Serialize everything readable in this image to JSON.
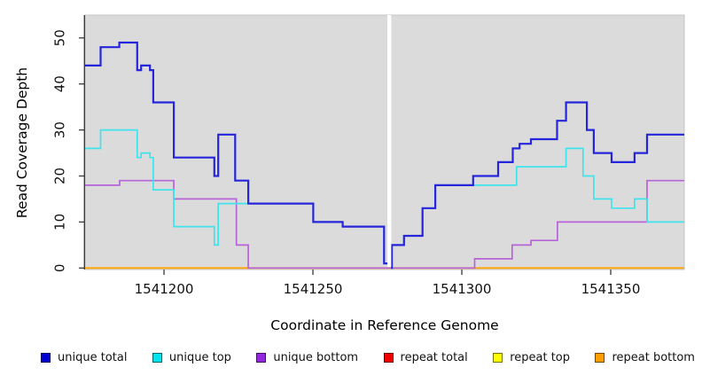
{
  "chart_data": {
    "type": "line",
    "subtype": "step-coverage",
    "title": "",
    "xlabel": "Coordinate in Reference Genome",
    "ylabel": "Read Coverage Depth",
    "xlim": [
      1541173.5,
      1541374.7
    ],
    "ylim": [
      0,
      54.6
    ],
    "x_ticks": [
      1541200,
      1541250,
      1541300,
      1541350
    ],
    "y_ticks": [
      0,
      10,
      20,
      30,
      40,
      50
    ],
    "grid": false,
    "legend_position": "bottom",
    "panel_bg": "#dbdbdb",
    "panel_border": "#c6c6c6",
    "axis_color": "#3a3a3a",
    "gap": {
      "x_start": 1541275.0,
      "x_end": 1541276.3,
      "color": "#ffffff"
    },
    "draw_order": [
      4,
      3,
      5,
      2,
      1,
      0
    ],
    "series": [
      {
        "name": "unique total",
        "color": "#2525db",
        "legend_color": "#0000d2",
        "width": 2.2,
        "blocks": [
          {
            "steps": [
              [
                1541173.5,
                44
              ],
              [
                1541178.7,
                48
              ],
              [
                1541185.0,
                49
              ],
              [
                1541191.0,
                43
              ],
              [
                1541192.3,
                44
              ],
              [
                1541195.3,
                43
              ],
              [
                1541196.4,
                36
              ],
              [
                1541203.3,
                24
              ],
              [
                1541216.9,
                20
              ],
              [
                1541218.2,
                29
              ],
              [
                1541223.9,
                19
              ],
              [
                1541228.3,
                14
              ],
              [
                1541250.1,
                10
              ],
              [
                1541260.0,
                9
              ],
              [
                1541273.9,
                1
              ]
            ],
            "end": 1541275.0
          },
          {
            "steps": [
              [
                1541276.3,
                0
              ],
              [
                1541276.5,
                5
              ],
              [
                1541280.6,
                7
              ],
              [
                1541286.8,
                13
              ],
              [
                1541291.1,
                18
              ],
              [
                1541303.8,
                20
              ],
              [
                1541312.2,
                23
              ],
              [
                1541317.1,
                26
              ],
              [
                1541319.4,
                27
              ],
              [
                1541323.2,
                28
              ],
              [
                1541332.0,
                32
              ],
              [
                1541335.0,
                36
              ],
              [
                1541342.0,
                30
              ],
              [
                1541344.3,
                25
              ],
              [
                1541350.3,
                23
              ],
              [
                1541358.0,
                25
              ],
              [
                1541362.2,
                29
              ]
            ],
            "end": 1541374.7
          }
        ]
      },
      {
        "name": "unique top",
        "color": "#3ee3ec",
        "legend_color": "#00e5ee",
        "width": 1.7,
        "blocks": [
          {
            "steps": [
              [
                1541173.5,
                26
              ],
              [
                1541178.7,
                30
              ],
              [
                1541191.0,
                24
              ],
              [
                1541192.3,
                25
              ],
              [
                1541195.3,
                24
              ],
              [
                1541196.4,
                17
              ],
              [
                1541203.3,
                9
              ],
              [
                1541216.9,
                5
              ],
              [
                1541218.2,
                14
              ],
              [
                1541250.1,
                10
              ],
              [
                1541260.0,
                9
              ],
              [
                1541273.9,
                1
              ]
            ],
            "end": 1541275.0
          },
          {
            "steps": [
              [
                1541276.3,
                0
              ],
              [
                1541276.5,
                5
              ],
              [
                1541280.6,
                7
              ],
              [
                1541286.8,
                13
              ],
              [
                1541291.1,
                18
              ],
              [
                1541318.4,
                22
              ],
              [
                1541335.0,
                26
              ],
              [
                1541340.7,
                20
              ],
              [
                1541344.3,
                15
              ],
              [
                1541350.3,
                13
              ],
              [
                1541358.0,
                15
              ],
              [
                1541362.2,
                10
              ]
            ],
            "end": 1541374.7
          }
        ]
      },
      {
        "name": "unique bottom",
        "color": "#b763d9",
        "legend_color": "#9327dd",
        "width": 1.7,
        "blocks": [
          {
            "steps": [
              [
                1541173.5,
                18
              ],
              [
                1541185.1,
                19
              ],
              [
                1541203.3,
                15
              ],
              [
                1541224.3,
                5
              ],
              [
                1541228.3,
                0
              ],
              [
                1541304.3,
                2
              ],
              [
                1541316.9,
                5
              ],
              [
                1541323.2,
                6
              ],
              [
                1541332.1,
                10
              ],
              [
                1541362.2,
                19
              ]
            ],
            "end": 1541374.7
          }
        ]
      },
      {
        "name": "repeat total",
        "color": "#e00000",
        "legend_color": "#ee0000",
        "width": 1.2,
        "blocks": [
          {
            "steps": [
              [
                1541173.5,
                0
              ]
            ],
            "end": 1541374.7
          }
        ]
      },
      {
        "name": "repeat top",
        "color": "#ffff00",
        "legend_color": "#ffff00",
        "width": 1.2,
        "blocks": [
          {
            "steps": [
              [
                1541173.5,
                0
              ]
            ],
            "end": 1541374.7
          }
        ]
      },
      {
        "name": "repeat bottom",
        "color": "#ffa500",
        "legend_color": "#ff9e00",
        "width": 1.8,
        "blocks": [
          {
            "steps": [
              [
                1541173.5,
                0
              ]
            ],
            "end": 1541374.7
          }
        ]
      }
    ]
  }
}
